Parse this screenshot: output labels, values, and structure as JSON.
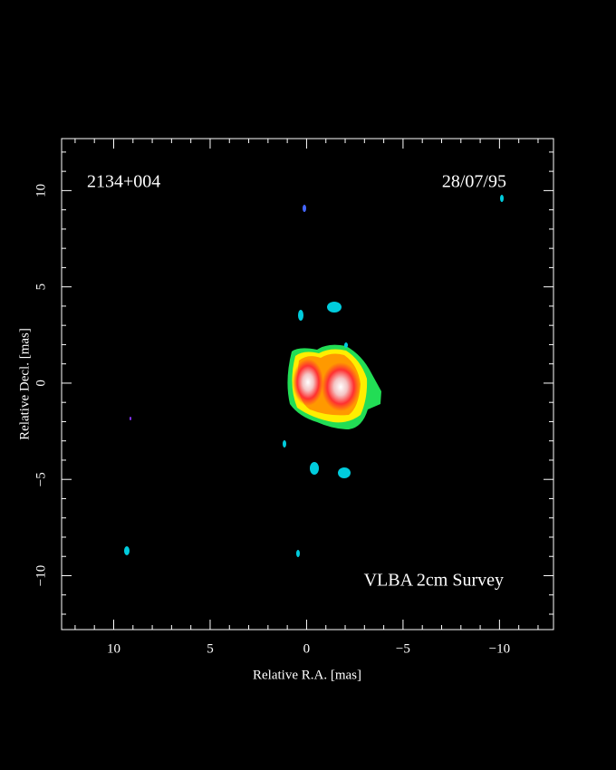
{
  "chart_data": {
    "type": "image",
    "annotations": [
      "2134+004",
      "28/07/95",
      "VLBA 2cm Survey"
    ],
    "xlabel": "Relative R.A. [mas]",
    "ylabel": "Relative Decl. [mas]",
    "xlim": [
      12.7,
      -12.8
    ],
    "ylim": [
      -12.8,
      12.7
    ],
    "xticks": [
      10,
      5,
      0,
      {
        "value": -5,
        "label": "−5"
      },
      {
        "value": -10,
        "label": "−10"
      }
    ],
    "yticks": [
      {
        "value": -10,
        "label": "−10"
      },
      {
        "value": -5,
        "label": "−5"
      },
      0,
      5,
      10
    ],
    "xminorticks": [
      12,
      11,
      9,
      8,
      7,
      6,
      4,
      3,
      2,
      1,
      -1,
      -2,
      -3,
      -4,
      -6,
      -7,
      -8,
      -9,
      -11,
      -12
    ],
    "yminorticks": [
      -12,
      -11,
      -9,
      -8,
      -7,
      -6,
      -4,
      -3,
      -2,
      -1,
      1,
      2,
      3,
      4,
      6,
      7,
      8,
      9,
      11,
      12
    ],
    "color": "#ffffff"
  }
}
